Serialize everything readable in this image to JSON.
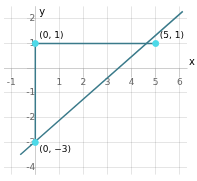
{
  "chart_data": {
    "type": "scatter",
    "xlabel": "x",
    "ylabel": "y",
    "xlim": [
      -1.3,
      6.3
    ],
    "ylim": [
      -4.3,
      2.5
    ],
    "xticks": [
      -1,
      {
        "value": 0,
        "label": ""
      },
      1,
      2,
      3,
      4,
      5,
      6
    ],
    "yticks": [
      -4,
      -3,
      -2,
      -1,
      {
        "value": 0,
        "label": ""
      },
      1,
      2
    ],
    "grid": true,
    "series": [
      {
        "x": [
          -0.625,
          6.125
        ],
        "values": [
          -3.5,
          2.3
        ],
        "color": "#3a7a8a",
        "line_style": "solid",
        "marker": "none"
      },
      {
        "x": [
          0,
          5
        ],
        "values": [
          1,
          1
        ],
        "color": "#3a7a8a",
        "line_style": "solid",
        "marker": "none"
      },
      {
        "x": [
          0,
          0
        ],
        "values": [
          -3,
          1
        ],
        "color": "#3a7a8a",
        "line_style": "solid",
        "marker": "none"
      },
      {
        "x": [
          0,
          5,
          0
        ],
        "values": [
          1,
          1,
          -3
        ],
        "color": "#4dd9e8",
        "line_style": "none",
        "marker": "circle"
      }
    ],
    "annotations": [
      {
        "text": "(0, 1)",
        "x": 0,
        "y": 1
      },
      {
        "text": "(5, 1)",
        "x": 5,
        "y": 1
      },
      {
        "text": "(0, −3)",
        "x": 0,
        "y": -3
      }
    ]
  }
}
